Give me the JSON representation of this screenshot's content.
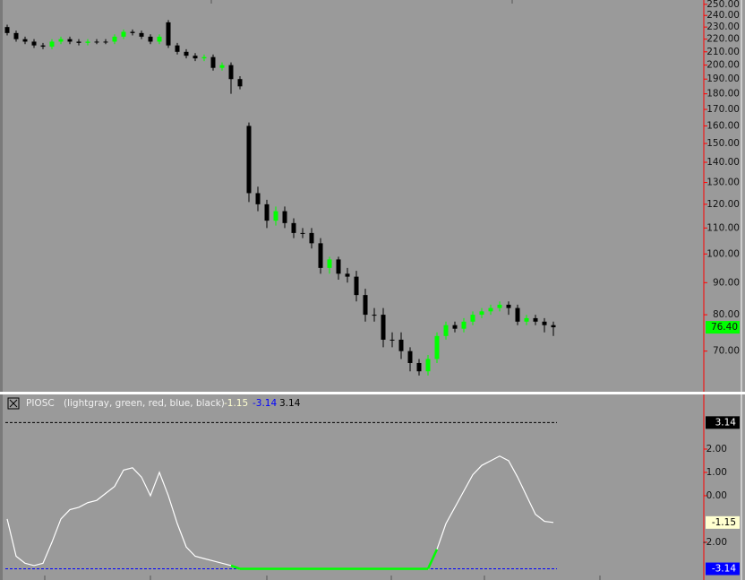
{
  "chart_data": [
    {
      "type": "candlestick",
      "log_scale": true,
      "up_color": "#00ff00",
      "down_color": "#000000",
      "ylim": [
        60.5,
        254
      ],
      "yticks": [
        {
          "value": 250,
          "label": "250.00"
        },
        {
          "value": 240,
          "label": "240.00"
        },
        {
          "value": 230,
          "label": "230.00"
        },
        {
          "value": 220,
          "label": "220.00"
        },
        {
          "value": 210,
          "label": "210.00"
        },
        {
          "value": 200,
          "label": "200.00"
        },
        {
          "value": 190,
          "label": "190.00"
        },
        {
          "value": 180,
          "label": "180.00"
        },
        {
          "value": 170,
          "label": "170.00"
        },
        {
          "value": 160,
          "label": "160.00"
        },
        {
          "value": 150,
          "label": "150.00"
        },
        {
          "value": 140,
          "label": "140.00"
        },
        {
          "value": 130,
          "label": "130.00"
        },
        {
          "value": 120,
          "label": "120.00"
        },
        {
          "value": 110,
          "label": "110.00"
        },
        {
          "value": 100,
          "label": "100.00"
        },
        {
          "value": 90,
          "label": "90.00"
        },
        {
          "value": 80,
          "label": "80.00"
        },
        {
          "value": 70,
          "label": "70.00"
        }
      ],
      "open": [
        230,
        225,
        220,
        218,
        215,
        214,
        218,
        220,
        218,
        217,
        218,
        218,
        218,
        222,
        226,
        225,
        222,
        218,
        234,
        215,
        210,
        207,
        205,
        206,
        198,
        200,
        190,
        160,
        125,
        120,
        113,
        117,
        112,
        108,
        108,
        104,
        95,
        98,
        93,
        92,
        86,
        80,
        80,
        73,
        73,
        70,
        67,
        65,
        68,
        74,
        77,
        76,
        78,
        80,
        81,
        82,
        83,
        82,
        78,
        79,
        78,
        77
      ],
      "high": [
        232,
        227,
        222,
        220,
        217,
        220,
        222,
        222,
        220,
        220,
        220,
        220,
        224,
        228,
        228,
        227,
        224,
        224,
        236,
        217,
        212,
        209,
        208,
        208,
        202,
        202,
        192,
        162,
        128,
        122,
        119,
        119,
        114,
        110,
        110,
        106,
        99,
        99,
        95,
        94,
        88,
        82,
        82,
        75,
        75,
        71,
        68,
        69,
        75,
        78,
        78,
        79,
        81,
        82,
        83,
        84,
        84,
        83,
        80,
        80,
        79,
        78
      ],
      "low": [
        223,
        218,
        216,
        213,
        212,
        212,
        216,
        216,
        215,
        215,
        216,
        216,
        216,
        220,
        223,
        220,
        216,
        216,
        213,
        208,
        205,
        203,
        203,
        196,
        196,
        180,
        183,
        121,
        117,
        110,
        111,
        110,
        106,
        106,
        102,
        93,
        93,
        91,
        90,
        84,
        78,
        78,
        71,
        71,
        68,
        65,
        64,
        64,
        67,
        73,
        75,
        75,
        77,
        79,
        80,
        81,
        80,
        77,
        77,
        77,
        75,
        74
      ],
      "close": [
        225,
        220,
        218,
        215,
        214,
        218,
        220,
        218,
        217,
        218,
        218,
        218,
        222,
        226,
        225,
        222,
        218,
        222,
        215,
        210,
        207,
        205,
        206,
        198,
        200,
        190,
        185,
        125,
        120,
        113,
        117,
        112,
        108,
        108,
        104,
        95,
        98,
        93,
        92,
        86,
        80,
        80,
        73,
        73,
        70,
        67,
        65,
        68,
        74,
        77,
        76,
        78,
        80,
        81,
        82,
        83,
        82,
        78,
        79,
        78,
        77,
        76.4
      ],
      "last_price": {
        "value": 76.4,
        "label": "76.40",
        "color": "#00ff00"
      }
    },
    {
      "type": "line",
      "title": "PIOSC",
      "subtitle": "(lightgray, green, red, blue, black)",
      "color": "#ffffff",
      "low_color": "#00ff00",
      "ylim": [
        -3.35,
        4.27
      ],
      "yticks": [
        {
          "value": 2,
          "label": "2.00"
        },
        {
          "value": 1,
          "label": "1.00"
        },
        {
          "value": 0,
          "label": "0.00"
        },
        {
          "value": -2,
          "label": "-2.00"
        }
      ],
      "values": [
        -1.0,
        -2.6,
        -2.9,
        -3.0,
        -2.9,
        -2.0,
        -1.0,
        -0.6,
        -0.5,
        -0.3,
        -0.2,
        0.1,
        0.4,
        1.1,
        1.2,
        0.8,
        0.0,
        1.0,
        0.0,
        -1.2,
        -2.2,
        -2.6,
        -2.7,
        -2.8,
        -2.9,
        -3.0,
        -3.14,
        -3.14,
        -3.14,
        -3.14,
        -3.14,
        -3.14,
        -3.14,
        -3.14,
        -3.14,
        -3.14,
        -3.14,
        -3.14,
        -3.14,
        -3.14,
        -3.14,
        -3.14,
        -3.14,
        -3.14,
        -3.14,
        -3.14,
        -3.14,
        -3.14,
        -2.3,
        -1.2,
        -0.5,
        0.2,
        0.9,
        1.3,
        1.5,
        1.7,
        1.5,
        0.8,
        0.0,
        -0.8,
        -1.1,
        -1.15
      ],
      "current": {
        "value": -1.15,
        "label": "-1.15",
        "color": "#ffffd0",
        "text_color": "#000000",
        "legend_color": "#ffffd0"
      },
      "upper": {
        "value": 3.14,
        "label": "3.14",
        "color": "#000000",
        "text_color": "#ffffff",
        "legend_color": "#000000"
      },
      "lower": {
        "value": -3.14,
        "label": "-3.14",
        "color": "#0000ff",
        "text_color": "#ffffff",
        "legend_color": "#0000ff"
      }
    }
  ]
}
